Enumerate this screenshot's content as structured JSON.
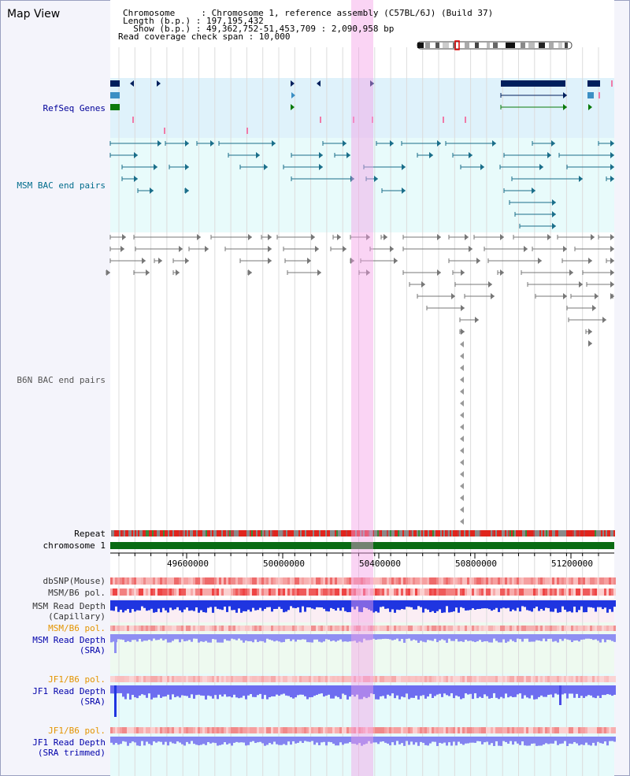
{
  "title": "Map View",
  "header": {
    "chromosome_line": "Chromosome     : Chromosome 1, reference assembly (C57BL/6J) (Build 37)",
    "length_line": "Length (b.p.) : 197,195,432",
    "show_line": "  Show (b.p.) : 49,362,752-51,453,709 : 2,090,958 bp",
    "coverage_line": "Read coverage check span : 10,000"
  },
  "tracks": {
    "refseq": "RefSeq Genes",
    "msm_bac": "MSM BAC end pairs",
    "b6n_bac": "B6N BAC end pairs",
    "repeat": "Repeat",
    "chromosome": "chromosome 1",
    "dbsnp": "dbSNP(Mouse)",
    "msm_b6_pol": "MSM/B6 pol.",
    "msm_depth_cap": "MSM Read Depth\n(Capillary)",
    "msm_b6_pol2": "MSM/B6 pol.",
    "msm_depth_sra": "MSM Read Depth\n(SRA)",
    "jf1_b6_pol": "JF1/B6 pol.",
    "jf1_depth_sra": "JF1 Read Depth\n(SRA)",
    "jf1_b6_pol2": "JF1/B6 pol.",
    "jf1_depth_trim": "JF1 Read Depth\n(SRA trimmed)"
  },
  "axis_ticks": [
    "49600000",
    "50000000",
    "50400000",
    "50800000",
    "51200000"
  ],
  "colors": {
    "refseq_label": "#000099",
    "msm_bac_label": "#006c8c",
    "b6n_bac_label": "#555555",
    "pol_label_orange": "#e39400",
    "depth_label_blue": "#0000aa",
    "highlight": "#f5b8eb"
  }
}
